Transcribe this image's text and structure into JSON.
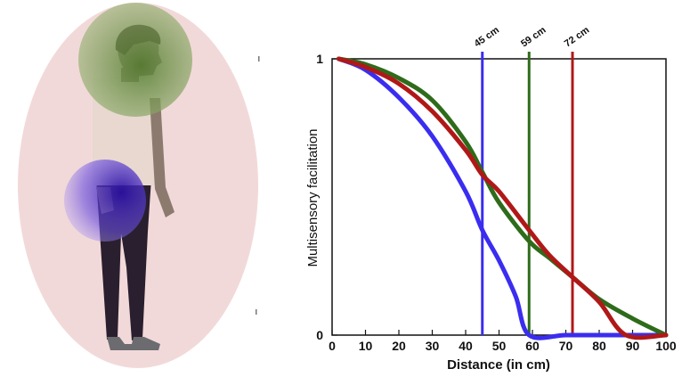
{
  "chart_data": {
    "type": "line",
    "xlabel": "Distance (in cm)",
    "ylabel": "Multisensory facilitation",
    "xlim": [
      0,
      100
    ],
    "ylim": [
      0,
      1
    ],
    "x_ticks": [
      "0",
      "10",
      "20",
      "30",
      "40",
      "50",
      "60",
      "70",
      "80",
      "90",
      "100"
    ],
    "y_ticks": [
      "0",
      "1"
    ],
    "grid": false,
    "series": [
      {
        "color": "#3a2df0",
        "x": [
          2,
          10,
          20,
          30,
          40,
          45,
          50,
          55,
          59,
          70,
          80,
          90,
          100
        ],
        "y": [
          1.0,
          0.96,
          0.86,
          0.72,
          0.52,
          0.38,
          0.27,
          0.14,
          0.0,
          0.0,
          0.0,
          0.0,
          0.0
        ]
      },
      {
        "color": "#2e6b1a",
        "x": [
          2,
          10,
          20,
          30,
          40,
          45,
          50,
          59,
          65,
          72,
          80,
          90,
          100
        ],
        "y": [
          1.0,
          0.98,
          0.93,
          0.85,
          0.7,
          0.59,
          0.48,
          0.34,
          0.28,
          0.21,
          0.13,
          0.06,
          0.0
        ]
      },
      {
        "color": "#b01818",
        "x": [
          2,
          10,
          20,
          30,
          40,
          45,
          50,
          59,
          65,
          72,
          80,
          88,
          100
        ],
        "y": [
          1.0,
          0.97,
          0.91,
          0.81,
          0.67,
          0.58,
          0.52,
          0.38,
          0.29,
          0.21,
          0.12,
          0.0,
          0.0
        ]
      }
    ],
    "markers": [
      {
        "x": 45,
        "label": "45 cm",
        "color": "#3a2df0"
      },
      {
        "x": 59,
        "label": "59 cm",
        "color": "#2e6b1a"
      },
      {
        "x": 72,
        "label": "72 cm",
        "color": "#b01818"
      }
    ]
  },
  "illustration": {
    "body_field_color": "#f2d9d9",
    "head_field_color": "#6e8f3c",
    "hand_field_color": "#4a2fc4",
    "skin_color": "#8c7a6e",
    "shirt_color": "#e8d8d0",
    "trousers_color": "#2a1f2e"
  }
}
